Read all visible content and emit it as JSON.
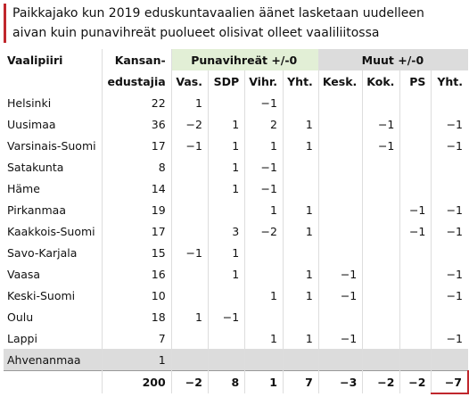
{
  "header": {
    "title_lines": [
      "Paikkajako kun 2019 eduskuntavaalien äänet lasketaan uudelleen",
      "aivan kuin punavihreät puolueet olisivat olleet vaaliliitossa"
    ]
  },
  "table": {
    "col_header": {
      "district": "Vaalipiiri",
      "seats_line1": "Kansan-",
      "seats_line2": "edustajia",
      "group1": "Punavihreät +/-0",
      "group2": "Muut +/-0",
      "parties": [
        "Vas.",
        "SDP",
        "Vihr.",
        "Yht.",
        "Kesk.",
        "Kok.",
        "PS",
        "Yht."
      ]
    },
    "rows": [
      [
        "Helsinki",
        "22",
        "1",
        null,
        "−1",
        null,
        null,
        null,
        null,
        null
      ],
      [
        "Uusimaa",
        "36",
        "−2",
        "1",
        "2",
        "1",
        null,
        "−1",
        null,
        "−1"
      ],
      [
        "Varsinais-Suomi",
        "17",
        "−1",
        "1",
        "1",
        "1",
        null,
        "−1",
        null,
        "−1"
      ],
      [
        "Satakunta",
        "8",
        null,
        "1",
        "−1",
        null,
        null,
        null,
        null,
        null
      ],
      [
        "Häme",
        "14",
        null,
        "1",
        "−1",
        null,
        null,
        null,
        null,
        null
      ],
      [
        "Pirkanmaa",
        "19",
        null,
        null,
        "1",
        "1",
        null,
        null,
        "−1",
        "−1"
      ],
      [
        "Kaakkois-Suomi",
        "17",
        null,
        "3",
        "−2",
        "1",
        null,
        null,
        "−1",
        "−1"
      ],
      [
        "Savo-Karjala",
        "15",
        "−1",
        "1",
        null,
        null,
        null,
        null,
        null,
        null
      ],
      [
        "Vaasa",
        "16",
        null,
        "1",
        null,
        "1",
        "−1",
        null,
        null,
        "−1"
      ],
      [
        "Keski-Suomi",
        "10",
        null,
        null,
        "1",
        "1",
        "−1",
        null,
        null,
        "−1"
      ],
      [
        "Oulu",
        "18",
        "1",
        "−1",
        null,
        null,
        null,
        null,
        null,
        null
      ],
      [
        "Lappi",
        "7",
        null,
        null,
        "1",
        "1",
        "−1",
        null,
        null,
        "−1"
      ],
      [
        "Ahvenanmaa",
        "1",
        null,
        null,
        null,
        null,
        null,
        null,
        null,
        null
      ]
    ],
    "total": [
      "200",
      "−2",
      "8",
      "1",
      "7",
      "−3",
      "−2",
      "−2",
      "−7"
    ]
  }
}
